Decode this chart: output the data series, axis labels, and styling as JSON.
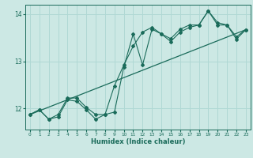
{
  "xlabel": "Humidex (Indice chaleur)",
  "ylabel": "",
  "background_color": "#cce8e4",
  "grid_color": "#b0d8d4",
  "line_color": "#1a6b5a",
  "xlim": [
    -0.5,
    23.5
  ],
  "ylim": [
    11.55,
    14.2
  ],
  "yticks": [
    12,
    13,
    14
  ],
  "xticks": [
    0,
    1,
    2,
    3,
    4,
    5,
    6,
    7,
    8,
    9,
    10,
    11,
    12,
    13,
    14,
    15,
    16,
    17,
    18,
    19,
    20,
    21,
    22,
    23
  ],
  "series1_x": [
    0,
    1,
    2,
    3,
    4,
    5,
    6,
    7,
    8,
    9,
    10,
    11,
    12,
    13,
    14,
    15,
    16,
    17,
    18,
    19,
    20,
    21,
    22,
    23
  ],
  "series1_y": [
    11.87,
    11.97,
    11.77,
    11.82,
    12.18,
    12.15,
    11.97,
    11.77,
    11.87,
    11.92,
    12.88,
    13.58,
    12.92,
    13.68,
    13.58,
    13.42,
    13.62,
    13.72,
    13.77,
    14.07,
    13.77,
    13.77,
    13.47,
    13.67
  ],
  "series2_x": [
    0,
    1,
    2,
    3,
    4,
    5,
    6,
    7,
    8,
    9,
    10,
    11,
    12,
    13,
    14,
    15,
    16,
    17,
    18,
    19,
    20,
    21,
    22,
    23
  ],
  "series2_y": [
    11.87,
    11.97,
    11.77,
    11.87,
    12.22,
    12.22,
    12.02,
    11.87,
    11.87,
    12.48,
    12.92,
    13.32,
    13.62,
    13.72,
    13.58,
    13.48,
    13.68,
    13.77,
    13.77,
    14.07,
    13.82,
    13.77,
    13.52,
    13.67
  ],
  "trend_x": [
    0,
    23
  ],
  "trend_y": [
    11.87,
    13.67
  ]
}
